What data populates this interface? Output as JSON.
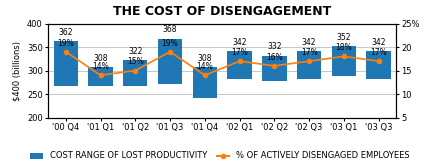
{
  "chart_data": {
    "type": "bar",
    "title": "THE COST OF DISENGAGEMENT",
    "ylabel": "$400 (billions)",
    "categories": [
      "'00 Q4",
      "'01 Q1",
      "'01 Q2",
      "'01 Q3",
      "'01 Q4",
      "'02 Q1",
      "'02 Q2",
      "'02 Q3",
      "'03 Q1",
      "'03 Q3"
    ],
    "series": [
      {
        "name": "COST RANGE OF LOST PRODUCTIVITY",
        "type": "bar",
        "values": [
          362,
          308,
          322,
          368,
          308,
          342,
          332,
          342,
          352,
          342
        ],
        "bottom": [
          268,
          268,
          268,
          272,
          242,
          282,
          278,
          282,
          288,
          282
        ]
      },
      {
        "name": "% OF ACTIVELY DISENGAGED EMPLOYEES",
        "type": "line",
        "axis": "y2",
        "marker": "o",
        "values": [
          19,
          14,
          15,
          19,
          14,
          17,
          16,
          17,
          18,
          17
        ],
        "value_labels": [
          "19%",
          "14%",
          "15%",
          "19%",
          "14%",
          "17%",
          "16%",
          "17%",
          "18%",
          "17%"
        ]
      }
    ],
    "ylim": [
      200,
      400
    ],
    "yticks": [
      200,
      250,
      300,
      350,
      400
    ],
    "y2lim": [
      5,
      25
    ],
    "y2ticks": [
      5,
      10,
      15,
      20,
      {
        "value": 25,
        "label": "25%"
      }
    ],
    "grid": true,
    "data_labels": true,
    "legend": "lower center"
  }
}
